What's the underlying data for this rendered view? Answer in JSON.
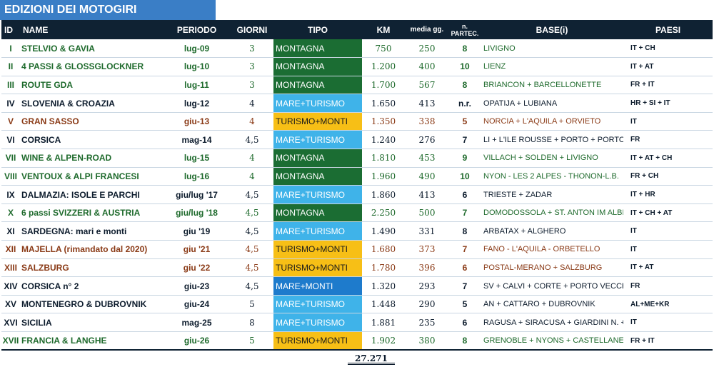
{
  "title": "EDIZIONI DEI MOTOGIRI",
  "headers": {
    "id": "ID",
    "name": "NAME",
    "periodo": "PERIODO",
    "giorni": "GIORNI",
    "tipo": "TIPO",
    "km": "KM",
    "media": "media gg.",
    "partec_line1": "n.",
    "partec_line2": "PARTEC.",
    "base": "BASE(i)",
    "paesi": "PAESI"
  },
  "colors": {
    "header_bg": "#0f2233",
    "title_bg": "#3a7ec6",
    "green_text": "#1e6a2c",
    "navy_text": "#0c1b2c",
    "brown_text": "#8a3a16",
    "MONTAGNA": "#1b6d33",
    "MARE+TURISMO": "#3fb3e9",
    "TURISMO+MONTI": "#f7bf16",
    "MARE+MONTI": "#1e7bcc"
  },
  "rows": [
    {
      "id": "I",
      "name": "STELVIO & GAVIA",
      "periodo": "lug-09",
      "giorni": "3",
      "tipo": "MONTAGNA",
      "km": "750",
      "media": "250",
      "partec": "8",
      "base": "LIVIGNO",
      "paesi": "IT + CH",
      "tone": "green"
    },
    {
      "id": "II",
      "name": "4 PASSI & GLOSSGLOCKNER",
      "periodo": "lug-10",
      "giorni": "3",
      "tipo": "MONTAGNA",
      "km": "1.200",
      "media": "400",
      "partec": "10",
      "base": "LIENZ",
      "paesi": "IT + AT",
      "tone": "green"
    },
    {
      "id": "III",
      "name": "ROUTE GDA",
      "periodo": "lug-11",
      "giorni": "3",
      "tipo": "MONTAGNA",
      "km": "1.700",
      "media": "567",
      "partec": "8",
      "base": "BRIANCON + BARCELLONETTE",
      "paesi": "FR + IT",
      "tone": "green"
    },
    {
      "id": "IV",
      "name": "SLOVENIA & CROAZIA",
      "periodo": "lug-12",
      "giorni": "4",
      "tipo": "MARE+TURISMO",
      "km": "1.650",
      "media": "413",
      "partec": "n.r.",
      "base": "OPATIJA + LUBIANA",
      "paesi": "HR + SI + IT",
      "tone": "navy"
    },
    {
      "id": "V",
      "name": "GRAN SASSO",
      "periodo": "giu-13",
      "giorni": "4",
      "tipo": "TURISMO+MONTI",
      "km": "1.350",
      "media": "338",
      "partec": "5",
      "base": "NORCIA + L'AQUILA + ORVIETO",
      "paesi": "IT",
      "tone": "brown"
    },
    {
      "id": "VI",
      "name": "CORSICA",
      "periodo": "mag-14",
      "giorni": "4,5",
      "tipo": "MARE+TURISMO",
      "km": "1.240",
      "media": "276",
      "partec": "7",
      "base": "LI + L'ILE ROUSSE + PORTO + PORTO VECCHIO",
      "paesi": "FR",
      "tone": "navy"
    },
    {
      "id": "VII",
      "name": "WINE & ALPEN-ROAD",
      "periodo": "lug-15",
      "giorni": "4",
      "tipo": "MONTAGNA",
      "km": "1.810",
      "media": "453",
      "partec": "9",
      "base": "VILLACH + SOLDEN + LIVIGNO",
      "paesi": "IT + AT + CH",
      "tone": "green"
    },
    {
      "id": "VIII",
      "name": "VENTOUX & ALPI FRANCESI",
      "periodo": "lug-16",
      "giorni": "4",
      "tipo": "MONTAGNA",
      "km": "1.960",
      "media": "490",
      "partec": "10",
      "base": "NYON - LES 2 ALPES - THONON-L.B.",
      "paesi": "FR + CH",
      "tone": "green"
    },
    {
      "id": "IX",
      "name": "DALMAZIA: ISOLE E PARCHI",
      "periodo": "giu/lug '17",
      "giorni": "4,5",
      "tipo": "MARE+TURISMO",
      "km": "1.860",
      "media": "413",
      "partec": "6",
      "base": "TRIESTE + ZADAR",
      "paesi": "IT + HR",
      "tone": "navy"
    },
    {
      "id": "X",
      "name": "6 passi SVIZZERI & AUSTRIA",
      "periodo": "giu/lug '18",
      "giorni": "4,5",
      "tipo": "MONTAGNA",
      "km": "2.250",
      "media": "500",
      "partec": "7",
      "base": "DOMODOSSOLA + ST. ANTON IM ALBERG",
      "paesi": "IT + CH + AT",
      "tone": "green"
    },
    {
      "id": "XI",
      "name": "SARDEGNA: mari e monti",
      "periodo": "giu '19",
      "giorni": "4,5",
      "tipo": "MARE+TURISMO",
      "km": "1.490",
      "media": "331",
      "partec": "8",
      "base": "ARBATAX + ALGHERO",
      "paesi": "IT",
      "tone": "navy"
    },
    {
      "id": "XII",
      "name": "MAJELLA (rimandato dal 2020)",
      "periodo": "giu '21",
      "giorni": "4,5",
      "tipo": "TURISMO+MONTI",
      "km": "1.680",
      "media": "373",
      "partec": "7",
      "base": "FANO - L'AQUILA - ORBETELLO",
      "paesi": "IT",
      "tone": "brown"
    },
    {
      "id": "XIII",
      "name": "SALZBURG",
      "periodo": "giu '22",
      "giorni": "4,5",
      "tipo": "TURISMO+MONTI",
      "km": "1.780",
      "media": "396",
      "partec": "6",
      "base": "POSTAL-MERANO + SALZBURG",
      "paesi": "IT + AT",
      "tone": "brown"
    },
    {
      "id": "XIV",
      "name": "CORSICA n° 2",
      "periodo": "giu-23",
      "giorni": "4,5",
      "tipo": "MARE+MONTI",
      "km": "1.320",
      "media": "293",
      "partec": "7",
      "base": "SV + CALVI + CORTE + PORTO VECCHIO",
      "paesi": "FR",
      "tone": "navy"
    },
    {
      "id": "XV",
      "name": "MONTENEGRO & DUBROVNIK",
      "periodo": "giu-24",
      "giorni": "5",
      "tipo": "MARE+TURISMO",
      "km": "1.448",
      "media": "290",
      "partec": "5",
      "base": "AN + CATTARO + DUBROVNIK",
      "paesi": "AL+ME+KR",
      "tone": "navy"
    },
    {
      "id": "XVI",
      "name": "SICILIA",
      "periodo": "mag-25",
      "giorni": "8",
      "tipo": "MARE+TURISMO",
      "km": "1.881",
      "media": "235",
      "partec": "6",
      "base": "RAGUSA + SIRACUSA + GIARDINI N. + ERICE",
      "paesi": "IT",
      "tone": "navy"
    },
    {
      "id": "XVII",
      "name": "FRANCIA & LANGHE",
      "periodo": "giu-26",
      "giorni": "5",
      "tipo": "TURISMO+MONTI",
      "km": "1.902",
      "media": "380",
      "partec": "8",
      "base": "GRENOBLE + NYONS + CASTELLANE + BRA",
      "paesi": "FR + IT",
      "tone": "green"
    }
  ],
  "total_km": "27.271"
}
